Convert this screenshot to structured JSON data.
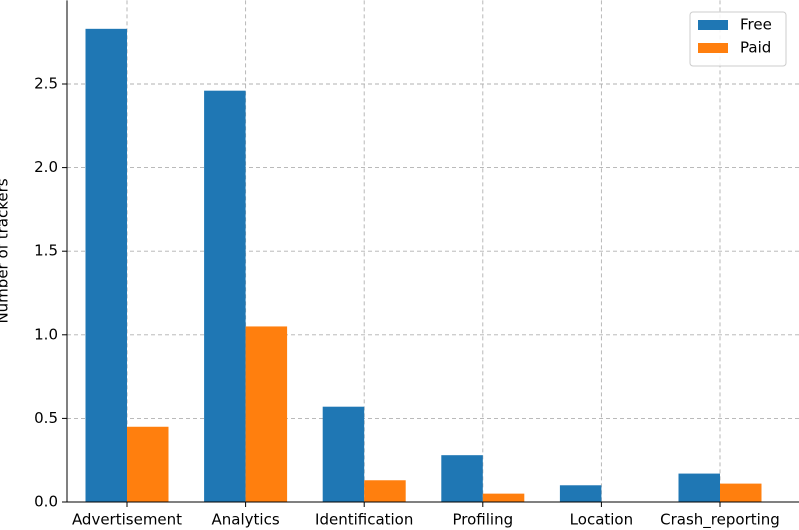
{
  "chart_data": {
    "type": "grouped-bar",
    "y_label": "Number of trackers",
    "categories": [
      "Advertisement",
      "Analytics",
      "Identification",
      "Profiling",
      "Location",
      "Crash_reporting"
    ],
    "series": [
      {
        "name": "Free",
        "color": "#1f77b4",
        "values": [
          2.83,
          2.46,
          0.57,
          0.28,
          0.1,
          0.17
        ]
      },
      {
        "name": "Paid",
        "color": "#ff7f0e",
        "values": [
          0.45,
          1.05,
          0.13,
          0.05,
          0,
          0.11
        ]
      }
    ],
    "ylim": [
      0,
      3
    ],
    "yticks": [
      {
        "value": 0,
        "label": "0.0"
      },
      0.5,
      {
        "value": 1,
        "label": "1.0"
      },
      1.5,
      {
        "value": 2,
        "label": "2.0"
      },
      2.5
    ],
    "grid": true,
    "legend": "upper-right"
  }
}
